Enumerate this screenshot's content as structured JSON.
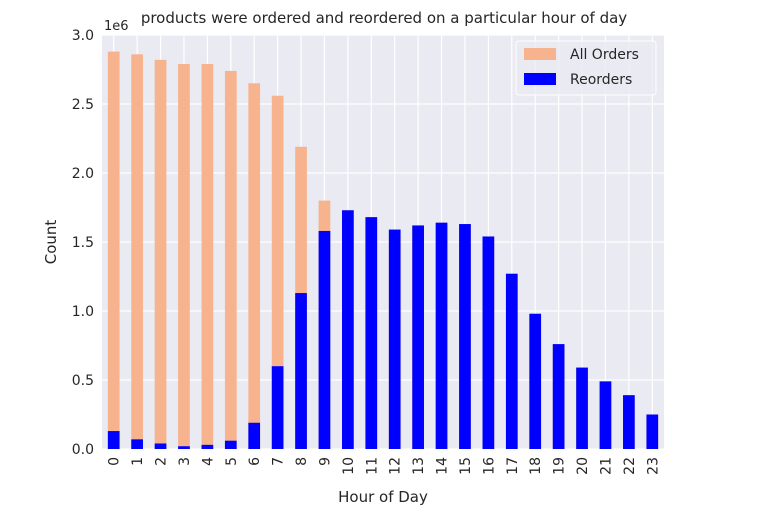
{
  "chart_data": {
    "type": "bar",
    "stacked_overlay": true,
    "title": "products were ordered and reordered on a particular hour of day",
    "xlabel": "Hour of Day",
    "ylabel": "Count",
    "offset_label": "1e6",
    "ylim": [
      0,
      3000000
    ],
    "y_ticks": [
      0,
      500000,
      1000000,
      1500000,
      2000000,
      2500000,
      3000000
    ],
    "y_tick_labels": [
      "0.0",
      "0.5",
      "1.0",
      "1.5",
      "2.0",
      "2.5",
      "3.0"
    ],
    "grid": true,
    "legend_position": "top-right",
    "categories": [
      "0",
      "1",
      "2",
      "3",
      "4",
      "5",
      "6",
      "7",
      "8",
      "9",
      "10",
      "11",
      "12",
      "13",
      "14",
      "15",
      "16",
      "17",
      "18",
      "19",
      "20",
      "21",
      "22",
      "23"
    ],
    "series": [
      {
        "name": "All Orders",
        "color": "#f6b38d",
        "values": [
          2880000,
          2860000,
          2820000,
          2790000,
          2790000,
          2740000,
          2650000,
          2560000,
          2190000,
          1800000,
          1730000,
          1680000,
          1590000,
          1620000,
          1640000,
          1630000,
          1540000,
          1270000,
          980000,
          760000,
          590000,
          490000,
          390000,
          250000
        ]
      },
      {
        "name": "Reorders",
        "color": "#0000ff",
        "values": [
          130000,
          70000,
          40000,
          20000,
          30000,
          60000,
          190000,
          600000,
          1130000,
          1580000,
          1730000,
          1680000,
          1590000,
          1620000,
          1640000,
          1630000,
          1540000,
          1270000,
          980000,
          760000,
          590000,
          490000,
          390000,
          250000
        ]
      }
    ]
  },
  "colors": {
    "plot_background": "#eaeaf2",
    "grid": "#ffffff",
    "text": "#262626"
  }
}
